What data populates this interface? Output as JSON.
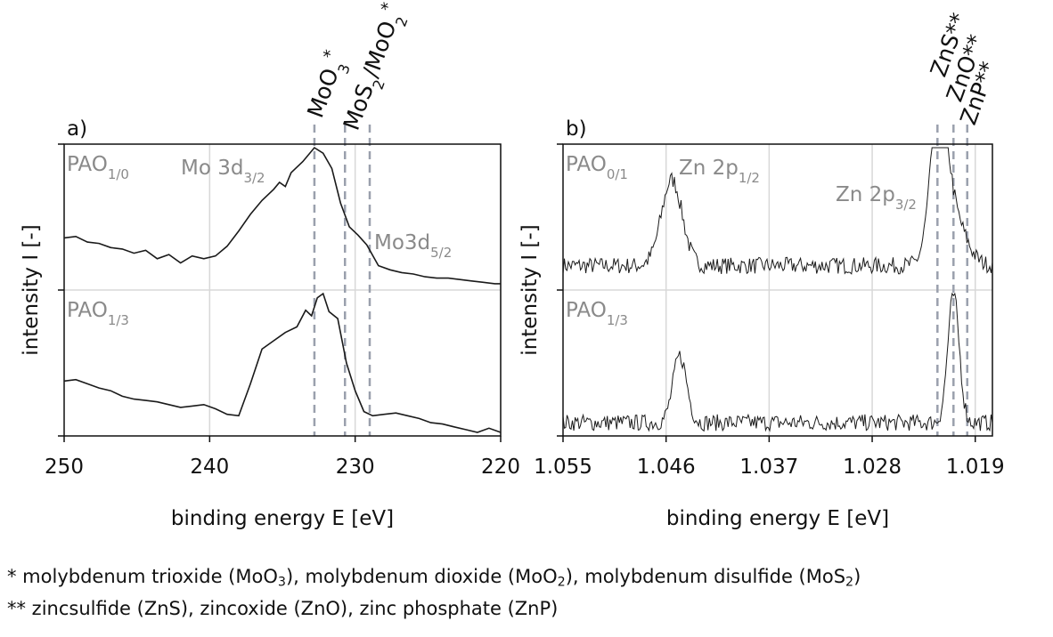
{
  "chart_data": [
    {
      "type": "line",
      "panel_label": "a)",
      "xlabel": "binding energy E [eV]",
      "ylabel": "intensity I [-]",
      "xlim": [
        250,
        220
      ],
      "x_reversed": true,
      "x_ticks": [
        "250",
        "240",
        "230",
        "220"
      ],
      "grid": true,
      "reference_lines": [
        {
          "x": 232.8,
          "label": "MoO",
          "sub": "3",
          "sup": "*"
        },
        {
          "x": 230.7,
          "label": "MoS",
          "sub": "2",
          "rest": "/MoO",
          "sub2": "2",
          "sup": "*"
        },
        {
          "x": 229.0,
          "label": "",
          "sub": "",
          "sup": ""
        }
      ],
      "peak_labels": [
        {
          "text": "Mo 3d",
          "sub": "3/2"
        },
        {
          "text": "Mo3d",
          "sub": "5/2"
        }
      ],
      "series": [
        {
          "name": "PAO",
          "sub": "1/0",
          "x": [
            250,
            249.2,
            248.4,
            247.6,
            246.8,
            246,
            245.2,
            244.4,
            243.6,
            242.8,
            242,
            241.2,
            240.4,
            239.6,
            238.8,
            238,
            237.2,
            236.4,
            235.6,
            235.2,
            234.8,
            234.4,
            233.6,
            232.8,
            232.2,
            231.6,
            231,
            230.4,
            229.8,
            229.2,
            228.4,
            227.6,
            226.8,
            226,
            225.2,
            224.4,
            223.6,
            222.8,
            222,
            221.2,
            220.4,
            220
          ],
          "y": [
            0.35,
            0.36,
            0.32,
            0.31,
            0.28,
            0.27,
            0.24,
            0.26,
            0.2,
            0.23,
            0.17,
            0.22,
            0.2,
            0.22,
            0.29,
            0.4,
            0.52,
            0.62,
            0.7,
            0.75,
            0.72,
            0.82,
            0.9,
            1.0,
            0.96,
            0.85,
            0.6,
            0.43,
            0.37,
            0.3,
            0.15,
            0.12,
            0.1,
            0.09,
            0.07,
            0.06,
            0.06,
            0.05,
            0.04,
            0.03,
            0.02,
            0.02
          ]
        },
        {
          "name": "PAO",
          "sub": "1/3",
          "x": [
            250,
            249.2,
            248.4,
            247.6,
            246.8,
            246,
            245.2,
            244.4,
            243.6,
            242.8,
            242,
            241.2,
            240.4,
            239.6,
            238.8,
            238,
            237.2,
            236.4,
            235.6,
            234.8,
            234,
            233.4,
            233,
            232.6,
            232.2,
            231.8,
            231.2,
            230.6,
            230,
            229.4,
            228.8,
            228,
            227.2,
            226.4,
            225.6,
            224.8,
            224,
            223.2,
            222.4,
            221.6,
            220.8,
            220
          ],
          "y": [
            0.37,
            0.38,
            0.35,
            0.32,
            0.3,
            0.26,
            0.24,
            0.23,
            0.22,
            0.2,
            0.18,
            0.19,
            0.2,
            0.17,
            0.13,
            0.12,
            0.35,
            0.6,
            0.66,
            0.72,
            0.76,
            0.88,
            0.84,
            0.97,
            1.0,
            0.87,
            0.82,
            0.5,
            0.3,
            0.15,
            0.12,
            0.13,
            0.14,
            0.12,
            0.1,
            0.07,
            0.06,
            0.04,
            0.02,
            0.0,
            0.03,
            0.0
          ]
        }
      ]
    },
    {
      "type": "line",
      "panel_label": "b)",
      "xlabel": "binding energy E [eV]",
      "ylabel": "intensity I [-]",
      "xlim": [
        1.055,
        1.0175
      ],
      "x_reversed": true,
      "x_ticks": [
        "1.055",
        "1.046",
        "1.037",
        "1.028",
        "1.019"
      ],
      "grid": true,
      "reference_lines": [
        {
          "x": 1.0223,
          "label": "ZnS**"
        },
        {
          "x": 1.0209,
          "label": "ZnO**"
        },
        {
          "x": 1.0197,
          "label": "ZnP**"
        }
      ],
      "peak_labels": [
        {
          "text": "Zn 2p",
          "sub": "1/2"
        },
        {
          "text": "Zn 2p",
          "sub": "3/2"
        }
      ],
      "series": [
        {
          "name": "PAO",
          "sub": "0/1",
          "peaks": [
            {
              "x": 1.0455,
              "height": 0.62,
              "width": 0.0009
            },
            {
              "x": 1.0222,
              "height": 0.95,
              "width": 0.0007
            },
            {
              "x": 1.0212,
              "height": 0.4,
              "width": 0.0012
            }
          ],
          "baseline": 0.15
        },
        {
          "name": "PAO",
          "sub": "1/3",
          "peaks": [
            {
              "x": 1.0448,
              "height": 0.48,
              "width": 0.0006
            },
            {
              "x": 1.0209,
              "height": 0.92,
              "width": 0.0005
            }
          ],
          "baseline": 0.07
        }
      ]
    }
  ],
  "footnotes": {
    "line1": {
      "prefix": "*   molybdenum trioxide (MoO",
      "s1": "3",
      "mid1": "), molybdenum dioxide (MoO",
      "s2": "2",
      "mid2": "), molybdenum disulfide (MoS",
      "s3": "2",
      "end": ")"
    },
    "line2": "** zincsulfide (ZnS), zincoxide (ZnO), zinc phosphate (ZnP)"
  },
  "colors": {
    "line": "#1a1a1a",
    "grid": "#d8d8d8",
    "label": "#8a8a8a",
    "ref": "#9aa0ad"
  }
}
